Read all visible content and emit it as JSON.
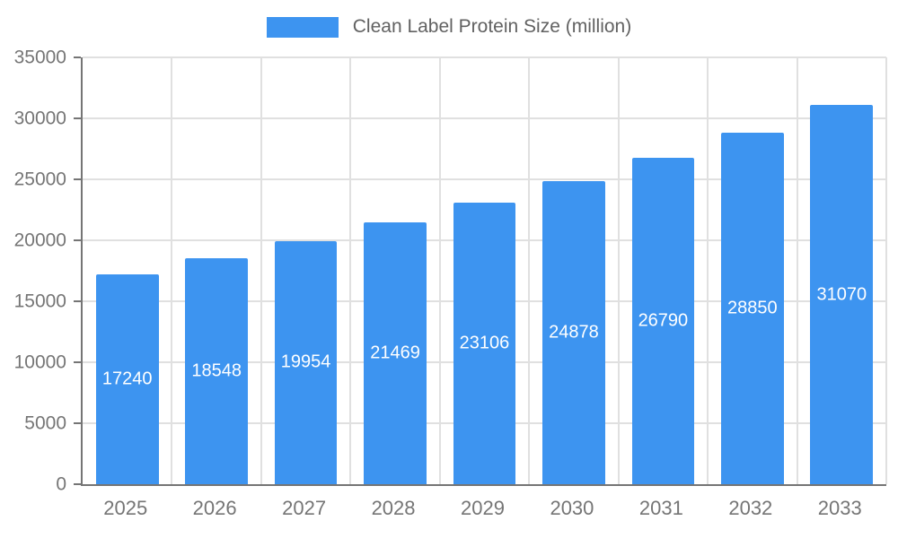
{
  "chart_data": {
    "type": "bar",
    "title": "Clean Label Protein Size (million)",
    "categories": [
      "2025",
      "2026",
      "2027",
      "2028",
      "2029",
      "2030",
      "2031",
      "2032",
      "2033"
    ],
    "values": [
      17240,
      18548,
      19954,
      21469,
      23106,
      24878,
      26790,
      28850,
      31070
    ],
    "xlabel": "",
    "ylabel": "",
    "ylim": [
      0,
      35000
    ],
    "yticks": [
      0,
      5000,
      10000,
      15000,
      20000,
      25000,
      30000,
      35000
    ],
    "grid": true,
    "legend_position": "top",
    "bar_color": "#3d94f0",
    "value_label_color": "#ffffff",
    "axis_color": "#757575",
    "tick_label_color": "#757575",
    "title_color": "#616161",
    "grid_color": "#e0e0e0"
  }
}
